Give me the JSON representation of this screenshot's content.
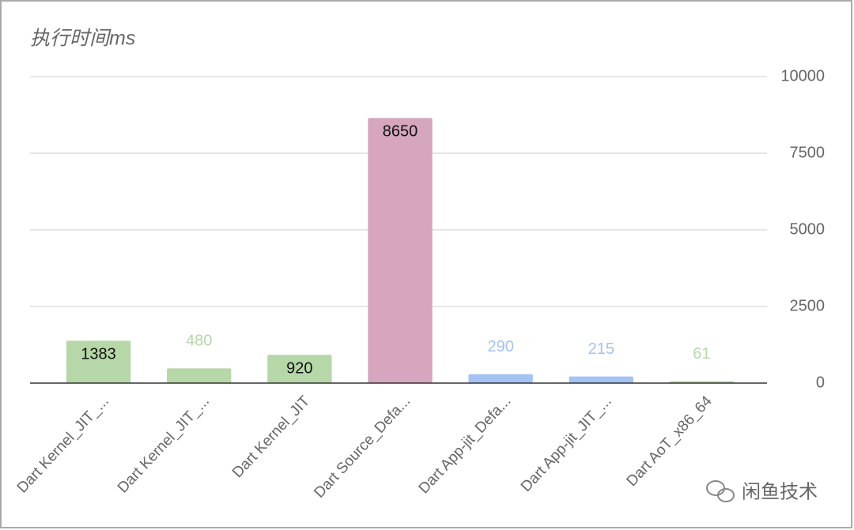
{
  "chart_data": {
    "type": "bar",
    "title": "执行时间ms",
    "categories": [
      "Dart Kernel_JIT_...",
      "Dart Kernel_JIT_...",
      "Dart Kernel_JIT",
      "Dart Source_Defa...",
      "Dart App-jit_Defa...",
      "Dart App-jit_JIT_...",
      "Dart AoT_x86_64"
    ],
    "values": [
      1383,
      480,
      920,
      8650,
      290,
      215,
      61
    ],
    "colors": [
      "#b6d7a8",
      "#b6d7a8",
      "#b6d7a8",
      "#d5a6bd",
      "#a4c2f4",
      "#a4c2f4",
      "#b6d7a8"
    ],
    "ylim": [
      0,
      10000
    ],
    "yticks": [
      0,
      2500,
      5000,
      7500,
      10000
    ],
    "grid": true,
    "watermark": "闲鱼技术"
  }
}
